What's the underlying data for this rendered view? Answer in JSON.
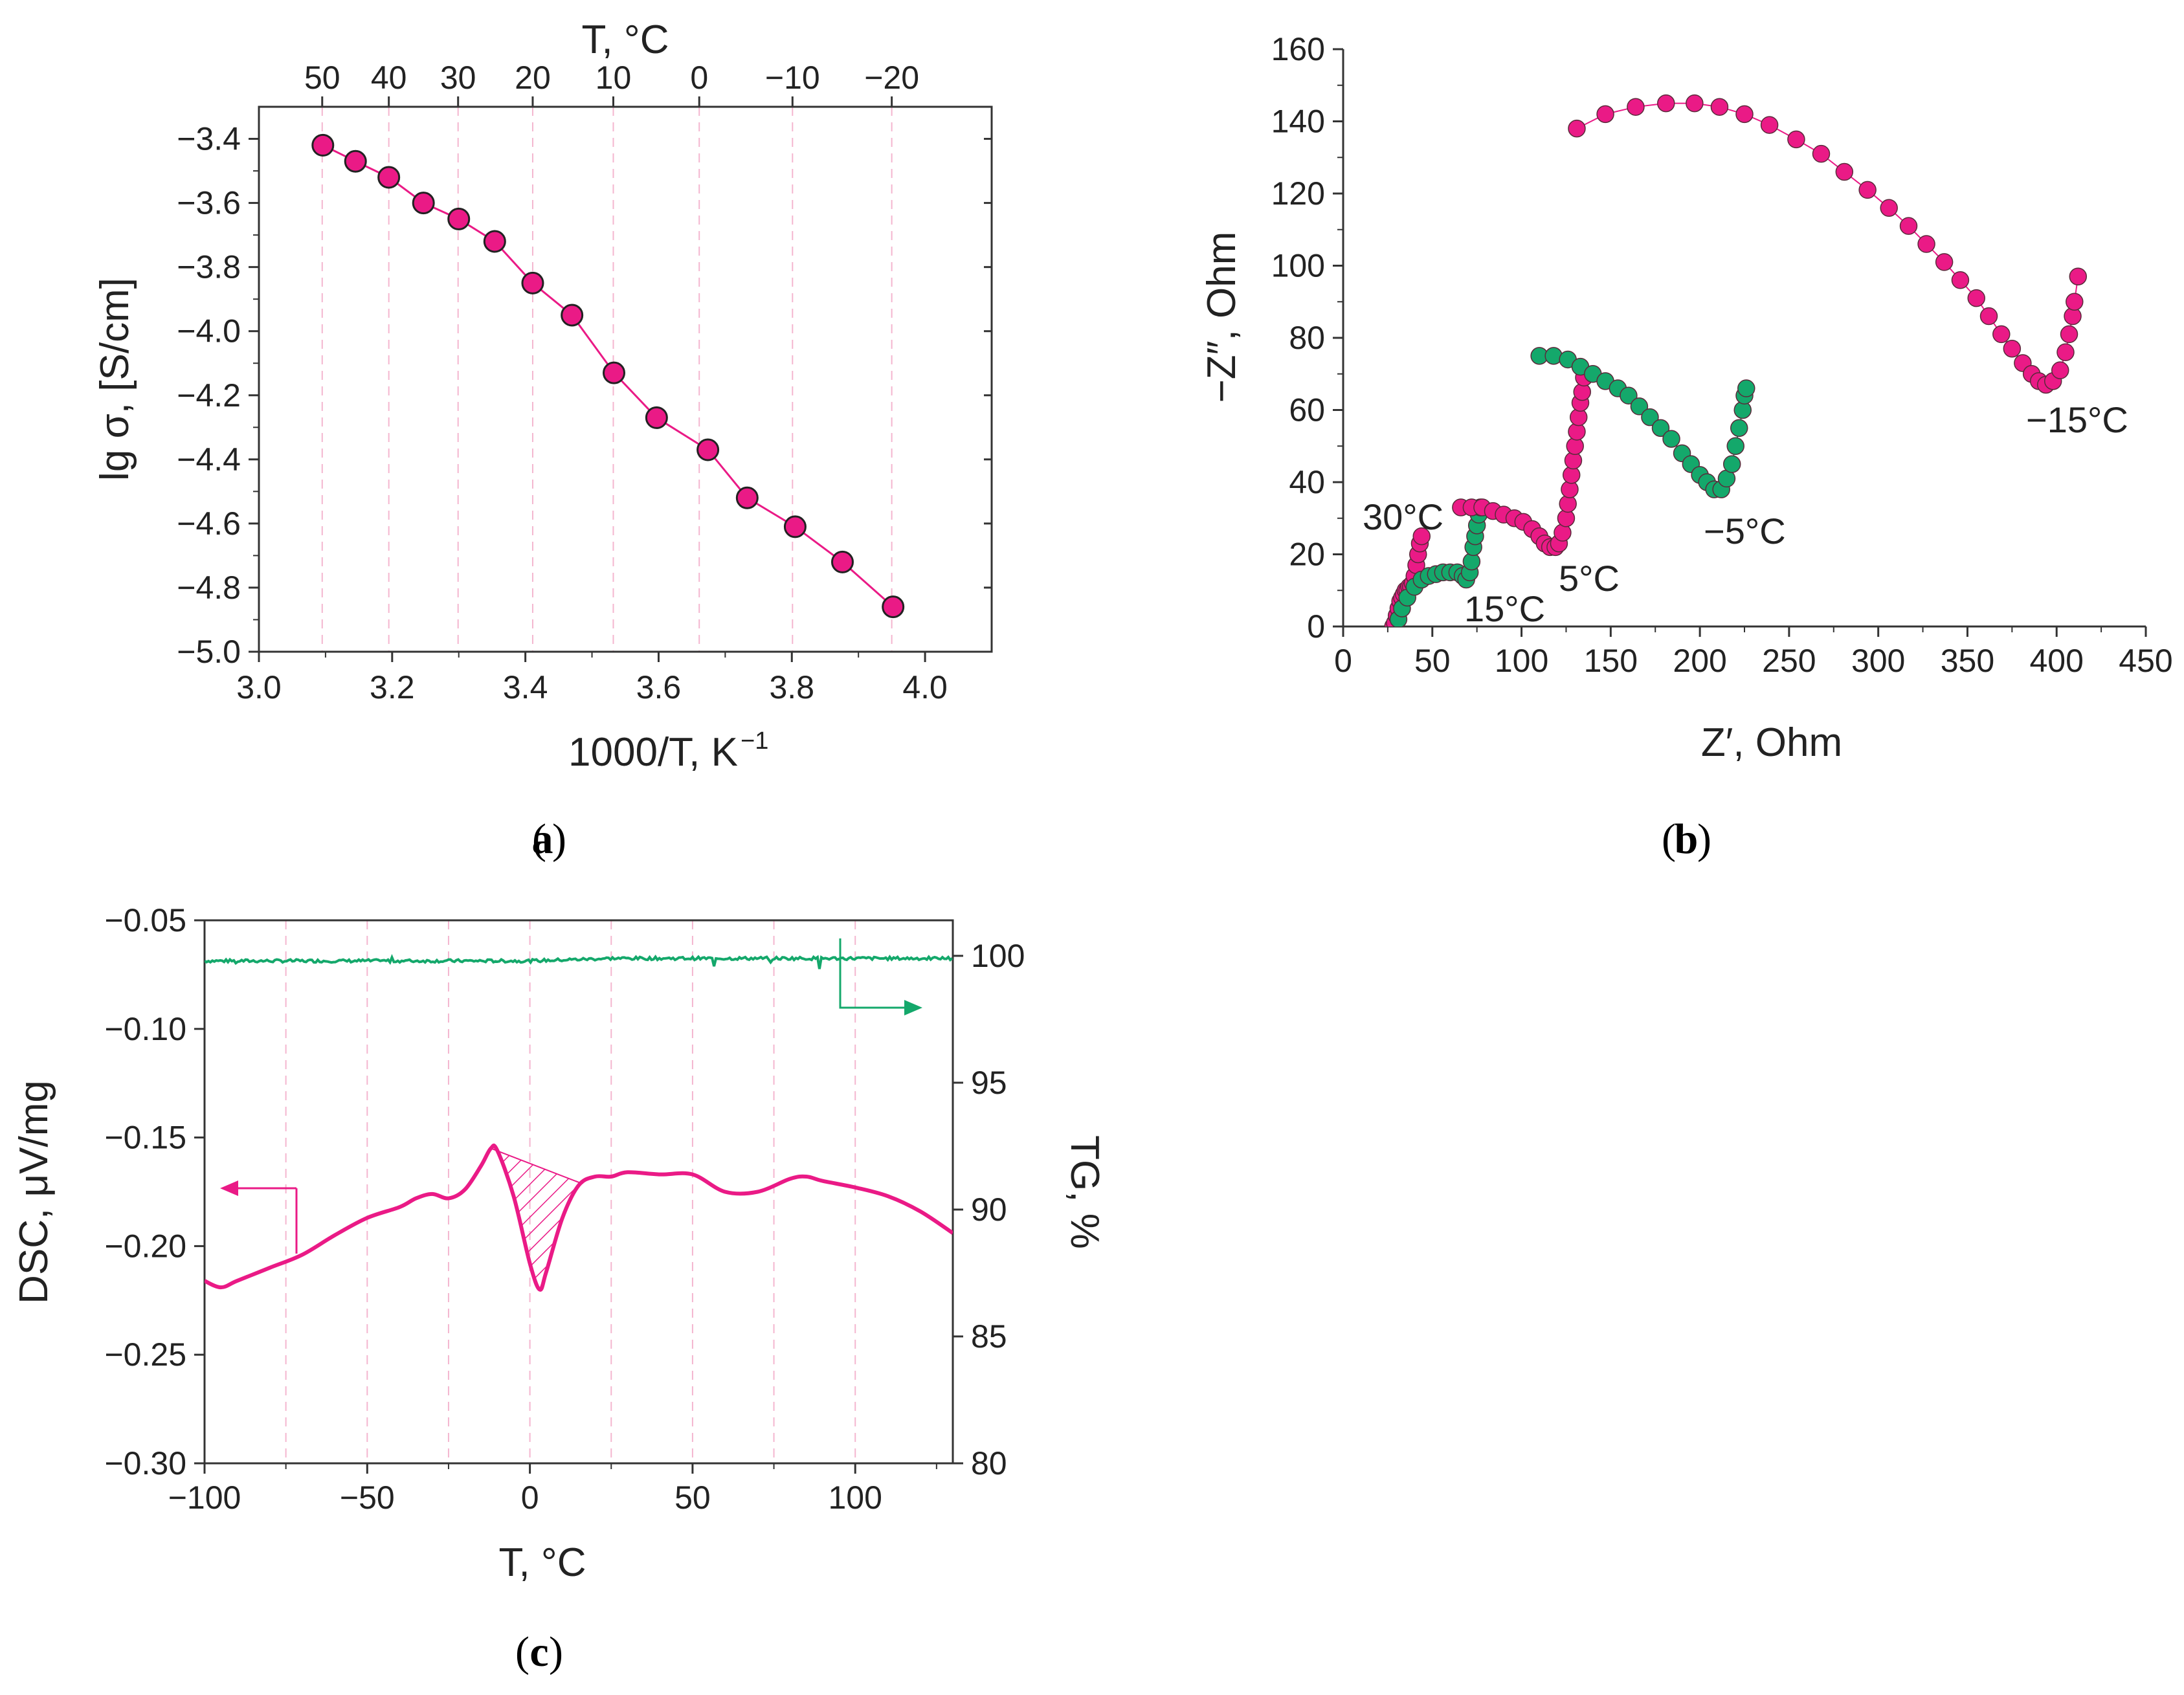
{
  "colors": {
    "pink": "#ea1a86",
    "green": "#14a86b",
    "grid": "#f4b6cf",
    "axis": "#333333"
  },
  "chart_data": [
    {
      "id": "a",
      "type": "scatter",
      "panel_label": "a",
      "xlabel": "1000/T, K",
      "xlabel_sup": "−1",
      "ylabel": "lg σ, [S/cm]",
      "top_label": "T, °C",
      "xlim": [
        3.0,
        4.1
      ],
      "ylim": [
        -5.0,
        -3.3
      ],
      "xticks": [
        3.0,
        3.2,
        3.4,
        3.6,
        3.8,
        4.0
      ],
      "xtick_labels": [
        "3.0",
        "3.2",
        "3.4",
        "3.6",
        "3.8",
        "4.0"
      ],
      "yticks": [
        -3.4,
        -3.6,
        -3.8,
        -4.0,
        -4.2,
        -4.4,
        -4.6,
        -4.8,
        -5.0
      ],
      "ytick_labels": [
        "−3.4",
        "−3.6",
        "−3.8",
        "−4.0",
        "−4.2",
        "−4.4",
        "−4.6",
        "−4.8",
        "−5.0"
      ],
      "top_ticks_x": [
        3.095,
        3.195,
        3.299,
        3.411,
        3.532,
        3.661,
        3.801,
        3.95
      ],
      "top_tick_labels": [
        "50",
        "40",
        "30",
        "20",
        "10",
        "0",
        "−10",
        "−20"
      ],
      "series": [
        {
          "name": "lg σ",
          "x": [
            3.096,
            3.145,
            3.195,
            3.247,
            3.3,
            3.354,
            3.411,
            3.47,
            3.533,
            3.597,
            3.674,
            3.733,
            3.805,
            3.876,
            3.952
          ],
          "y": [
            -3.42,
            -3.47,
            -3.52,
            -3.6,
            -3.65,
            -3.72,
            -3.85,
            -3.95,
            -4.13,
            -4.27,
            -4.37,
            -4.52,
            -4.61,
            -4.72,
            -4.86
          ]
        }
      ]
    },
    {
      "id": "b",
      "type": "scatter",
      "panel_label": "b",
      "xlabel": "Z′, Ohm",
      "ylabel": "−Z″, Ohm",
      "xlim": [
        0,
        450
      ],
      "ylim": [
        0,
        160
      ],
      "xticks": [
        0,
        50,
        100,
        150,
        200,
        250,
        300,
        350,
        400,
        450
      ],
      "xtick_labels": [
        "0",
        "50",
        "100",
        "150",
        "200",
        "250",
        "300",
        "350",
        "400",
        "450"
      ],
      "yticks": [
        0,
        20,
        40,
        60,
        80,
        100,
        120,
        140,
        160
      ],
      "ytick_labels": [
        "0",
        "20",
        "40",
        "60",
        "80",
        "100",
        "120",
        "140",
        "160"
      ],
      "series": [
        {
          "name": "30°C",
          "color": "pink",
          "x": [
            28,
            29,
            30,
            31,
            32,
            33,
            34,
            35,
            36,
            37,
            38,
            39,
            40,
            41,
            42,
            43,
            44
          ],
          "y": [
            0,
            1,
            3,
            5,
            7,
            8,
            9,
            10,
            10,
            11,
            11,
            12,
            14,
            17,
            20,
            23,
            25
          ]
        },
        {
          "name": "15°C",
          "color": "green",
          "x": [
            31,
            33,
            36,
            40,
            44,
            48,
            52,
            56,
            60,
            64,
            67,
            69,
            71,
            72,
            73,
            74,
            75,
            76,
            77
          ],
          "y": [
            2,
            5,
            8,
            11,
            13,
            14,
            14.5,
            15,
            15,
            15,
            14,
            13,
            15,
            18,
            22,
            25,
            28,
            31,
            33
          ]
        },
        {
          "name": "5°C",
          "color": "pink",
          "x": [
            66,
            72,
            78,
            84,
            90,
            96,
            101,
            106,
            110,
            113,
            116,
            119,
            121,
            123,
            125,
            126,
            127,
            128,
            129,
            130,
            131,
            132,
            133,
            134,
            135
          ],
          "y": [
            33,
            33,
            33,
            32,
            31,
            30,
            29,
            27,
            25,
            23,
            22,
            22,
            23,
            26,
            30,
            34,
            38,
            42,
            46,
            50,
            54,
            58,
            62,
            65,
            69
          ]
        },
        {
          "name": "−5°C",
          "color": "green",
          "x": [
            110,
            118,
            126,
            133,
            140,
            147,
            154,
            160,
            166,
            172,
            178,
            184,
            190,
            195,
            200,
            204,
            208,
            212,
            215,
            218,
            220,
            222,
            224,
            225,
            226
          ],
          "y": [
            75,
            75,
            74,
            72,
            70,
            68,
            66,
            64,
            61,
            58,
            55,
            52,
            48,
            45,
            42,
            40,
            38,
            38,
            41,
            45,
            50,
            55,
            60,
            64,
            66
          ]
        },
        {
          "name": "−15°C",
          "color": "pink",
          "x": [
            131,
            147,
            164,
            181,
            197,
            211,
            225,
            239,
            254,
            268,
            281,
            294,
            306,
            317,
            327,
            337,
            346,
            355,
            362,
            369,
            375,
            381,
            386,
            390,
            394,
            398,
            402,
            405,
            407,
            409,
            410,
            412
          ],
          "y": [
            138,
            142,
            144,
            145,
            145,
            144,
            142,
            139,
            135,
            131,
            126,
            121,
            116,
            111,
            106,
            101,
            96,
            91,
            86,
            81,
            77,
            73,
            70,
            68,
            67,
            68,
            71,
            76,
            81,
            86,
            90,
            97
          ]
        }
      ],
      "annotations": [
        "30°C",
        "15°C",
        "5°C",
        "−5°C",
        "−15°C"
      ]
    },
    {
      "id": "c",
      "type": "line",
      "panel_label": "c",
      "xlabel": "T, °C",
      "ylabel": "DSC, μV/mg",
      "y2label": "TG, %",
      "xlim": [
        -100,
        130
      ],
      "ylim": [
        -0.3,
        -0.05
      ],
      "y2lim": [
        80,
        101.4
      ],
      "xticks": [
        -100,
        -50,
        0,
        50,
        100
      ],
      "xtick_labels": [
        "−100",
        "−50",
        "0",
        "50",
        "100"
      ],
      "yticks": [
        -0.05,
        -0.1,
        -0.15,
        -0.2,
        -0.25,
        -0.3
      ],
      "ytick_labels": [
        "−0.05",
        "−0.10",
        "−0.15",
        "−0.20",
        "−0.25",
        "−0.30"
      ],
      "y2ticks": [
        100,
        95,
        90,
        85,
        80
      ],
      "y2tick_labels": [
        "100",
        "95",
        "90",
        "85",
        "80"
      ],
      "gridlines_x": [
        -75,
        -50,
        -25,
        0,
        25,
        50,
        75,
        100
      ],
      "series": [
        {
          "name": "DSC",
          "axis": "left",
          "color": "pink",
          "x": [
            -100,
            -95,
            -90,
            -80,
            -70,
            -60,
            -50,
            -40,
            -35,
            -30,
            -25,
            -20,
            -15,
            -12,
            -10,
            -5,
            0,
            3,
            5,
            10,
            15,
            20,
            25,
            30,
            40,
            50,
            60,
            70,
            80,
            85,
            90,
            100,
            110,
            120,
            130
          ],
          "y": [
            -0.216,
            -0.219,
            -0.216,
            -0.21,
            -0.204,
            -0.195,
            -0.187,
            -0.182,
            -0.178,
            -0.176,
            -0.178,
            -0.174,
            -0.163,
            -0.155,
            -0.156,
            -0.177,
            -0.208,
            -0.22,
            -0.212,
            -0.187,
            -0.172,
            -0.168,
            -0.168,
            -0.166,
            -0.167,
            -0.167,
            -0.175,
            -0.175,
            -0.169,
            -0.168,
            -0.17,
            -0.173,
            -0.177,
            -0.184,
            -0.194
          ]
        },
        {
          "name": "TG",
          "axis": "right",
          "color": "green",
          "x": [
            -100,
            -75,
            -50,
            -25,
            0,
            25,
            50,
            75,
            100,
            130
          ],
          "y": [
            99.8,
            99.8,
            99.8,
            99.8,
            99.8,
            99.9,
            99.9,
            99.9,
            99.9,
            99.9
          ]
        }
      ],
      "hatched_region": {
        "x_start": -12,
        "x_end": 16
      }
    }
  ]
}
